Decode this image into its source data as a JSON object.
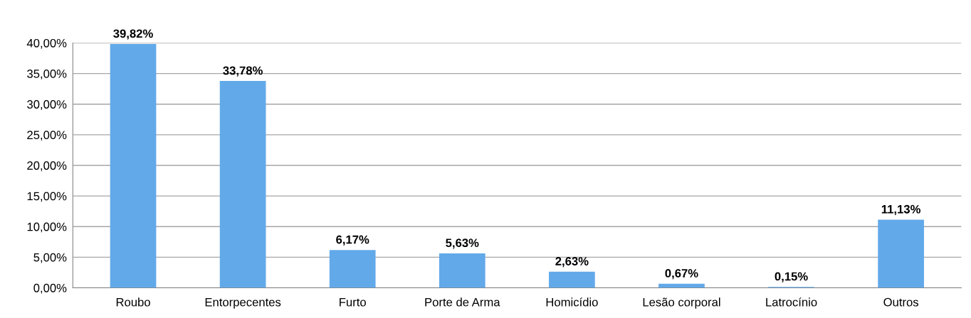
{
  "chart_data": {
    "type": "bar",
    "categories": [
      "Roubo",
      "Entorpecentes",
      "Furto",
      "Porte de Arma",
      "Homicídio",
      "Lesão corporal",
      "Latrocínio",
      "Outros"
    ],
    "values": [
      39.82,
      33.78,
      6.17,
      5.63,
      2.63,
      0.67,
      0.15,
      11.13
    ],
    "value_labels": [
      "39,82%",
      "33,78%",
      "6,17%",
      "5,63%",
      "2,63%",
      "0,67%",
      "0,15%",
      "11,13%"
    ],
    "color": "#62a9e9",
    "ylim": [
      0,
      40
    ],
    "yticks": [
      {
        "value": 0,
        "label": "0,00%"
      },
      {
        "value": 5,
        "label": "5,00%"
      },
      {
        "value": 10,
        "label": "10,00%"
      },
      {
        "value": 15,
        "label": "15,00%"
      },
      {
        "value": 20,
        "label": "20,00%"
      },
      {
        "value": 25,
        "label": "25,00%"
      },
      {
        "value": 30,
        "label": "30,00%"
      },
      {
        "value": 35,
        "label": "35,00%"
      },
      {
        "value": 40,
        "label": "40,00%"
      }
    ],
    "grid": "y",
    "legend": false
  }
}
